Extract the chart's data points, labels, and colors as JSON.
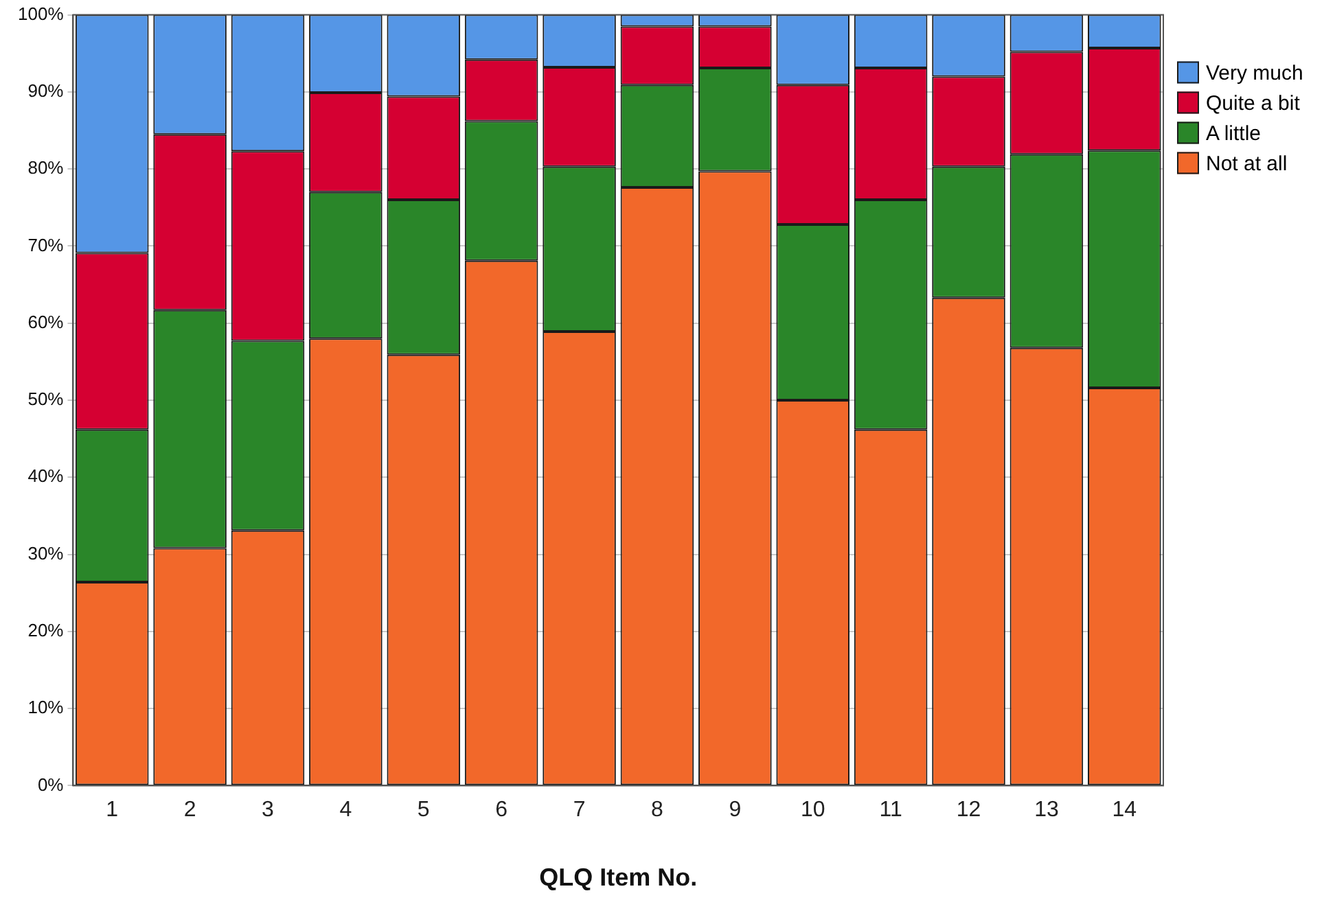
{
  "chart_data": {
    "type": "bar",
    "stacked": true,
    "xlabel": "QLQ Item No.",
    "categories": [
      "1",
      "2",
      "3",
      "4",
      "5",
      "6",
      "7",
      "8",
      "9",
      "10",
      "11",
      "12",
      "13",
      "14"
    ],
    "series": [
      {
        "name": "Not at all",
        "color": "#f2682a",
        "values": [
          26.4,
          30.8,
          33.1,
          58.0,
          55.9,
          68.1,
          58.9,
          77.6,
          79.7,
          50.0,
          46.2,
          63.3,
          56.8,
          51.6
        ]
      },
      {
        "name": "A little",
        "color": "#2a8629",
        "values": [
          19.8,
          30.9,
          24.6,
          19.0,
          20.1,
          18.1,
          21.4,
          13.3,
          13.4,
          22.8,
          29.8,
          17.0,
          25.1,
          30.8
        ]
      },
      {
        "name": "Quite a bit",
        "color": "#d50032",
        "values": [
          22.9,
          22.8,
          24.6,
          12.9,
          13.4,
          8.0,
          12.9,
          7.6,
          5.4,
          18.1,
          17.1,
          11.7,
          13.3,
          13.3
        ]
      },
      {
        "name": "Very much",
        "color": "#5596e6",
        "values": [
          30.9,
          15.5,
          17.7,
          10.1,
          10.6,
          5.8,
          6.8,
          1.5,
          1.5,
          9.1,
          6.9,
          8.0,
          4.8,
          4.3
        ]
      }
    ],
    "ylim": [
      0,
      100
    ],
    "yticks": [
      {
        "value": 0,
        "label": "0%"
      },
      {
        "value": 10,
        "label": "10%"
      },
      {
        "value": 20,
        "label": "20%"
      },
      {
        "value": 30,
        "label": "30%"
      },
      {
        "value": 40,
        "label": "40%"
      },
      {
        "value": 50,
        "label": "50%"
      },
      {
        "value": 60,
        "label": "60%"
      },
      {
        "value": 70,
        "label": "70%"
      },
      {
        "value": 80,
        "label": "80%"
      },
      {
        "value": 90,
        "label": "90%"
      },
      {
        "value": 100,
        "label": "100%"
      }
    ],
    "grid": "y",
    "legend": "top right"
  }
}
